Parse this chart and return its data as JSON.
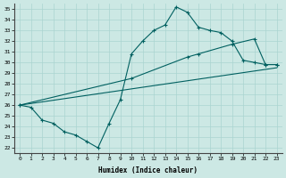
{
  "xlabel": "Humidex (Indice chaleur)",
  "xlim": [
    -0.5,
    23.5
  ],
  "ylim": [
    21.5,
    35.5
  ],
  "xticks": [
    0,
    1,
    2,
    3,
    4,
    5,
    6,
    7,
    8,
    9,
    10,
    11,
    12,
    13,
    14,
    15,
    16,
    17,
    18,
    19,
    20,
    21,
    22,
    23
  ],
  "yticks": [
    22,
    23,
    24,
    25,
    26,
    27,
    28,
    29,
    30,
    31,
    32,
    33,
    34,
    35
  ],
  "bg_color": "#cce8e4",
  "grid_color": "#aad4d0",
  "line_color": "#006060",
  "line1_x": [
    0,
    1,
    2,
    3,
    4,
    5,
    6,
    7,
    8,
    9,
    10,
    11,
    12,
    13,
    14,
    15,
    16,
    17,
    18,
    19,
    20,
    21,
    22,
    23
  ],
  "line1_y": [
    26.0,
    25.8,
    24.6,
    24.3,
    23.5,
    23.2,
    22.6,
    22.0,
    24.3,
    26.5,
    30.8,
    32.0,
    33.0,
    33.5,
    35.2,
    34.7,
    33.3,
    33.0,
    32.8,
    32.0,
    30.2,
    30.0,
    29.8,
    29.8
  ],
  "line2_x": [
    0,
    10,
    15,
    16,
    19,
    21,
    22,
    23
  ],
  "line2_y": [
    26.0,
    28.5,
    30.5,
    30.8,
    31.7,
    32.2,
    29.8,
    29.8
  ],
  "line3_x": [
    0,
    23
  ],
  "line3_y": [
    26.0,
    29.5
  ]
}
